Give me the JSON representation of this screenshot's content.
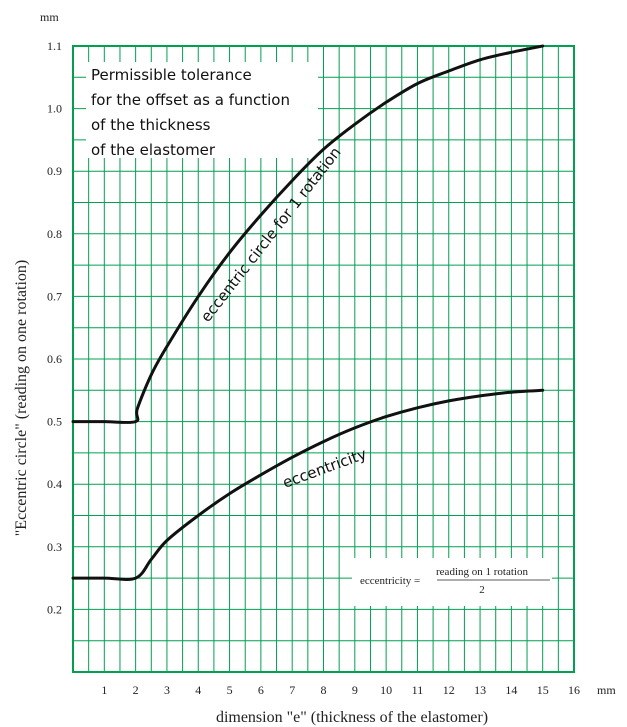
{
  "chart_data": {
    "type": "line",
    "xlabel": "dimension \"e\" (thickness of the elastomer)",
    "ylabel": "\"Eccentric circle\"   (reading on one rotation)",
    "x_unit": "mm",
    "y_unit": "mm",
    "xlim": [
      0,
      16
    ],
    "ylim": [
      0.1,
      1.1
    ],
    "x_ticks": [
      "1",
      "2",
      "3",
      "4",
      "5",
      "6",
      "7",
      "8",
      "9",
      "10",
      "11",
      "12",
      "13",
      "14",
      "15",
      "16"
    ],
    "y_ticks": [
      "0.2",
      "0.3",
      "0.4",
      "0.5",
      "0.6",
      "0.7",
      "0.8",
      "0.9",
      "1.0",
      "1.1"
    ],
    "grid": true,
    "annotation": [
      "Permissible tolerance",
      "for the offset as a function",
      "of the thickness",
      "of the elastomer"
    ],
    "series": [
      {
        "name": "eccentric circle for 1 rotation",
        "x": [
          0,
          1,
          2,
          2.05,
          2.5,
          3,
          4,
          5,
          6,
          7,
          8,
          9,
          10,
          11,
          12,
          13,
          14,
          15
        ],
        "y": [
          0.5,
          0.5,
          0.5,
          0.52,
          0.575,
          0.62,
          0.7,
          0.77,
          0.83,
          0.885,
          0.935,
          0.975,
          1.01,
          1.04,
          1.06,
          1.078,
          1.09,
          1.1
        ]
      },
      {
        "name": "eccentricity",
        "x": [
          0,
          1,
          2,
          2.5,
          3,
          4,
          5,
          6,
          7,
          8,
          9,
          10,
          11,
          12,
          13,
          14,
          15
        ],
        "y": [
          0.25,
          0.25,
          0.25,
          0.28,
          0.31,
          0.35,
          0.385,
          0.415,
          0.443,
          0.468,
          0.49,
          0.508,
          0.522,
          0.533,
          0.541,
          0.547,
          0.55
        ]
      }
    ],
    "formula": {
      "lhs": "eccentricity =",
      "numerator": "reading on 1 rotation",
      "denominator": "2"
    },
    "colors": {
      "grid": "#00a050",
      "curve": "#111111",
      "background": "#ffffff"
    }
  }
}
